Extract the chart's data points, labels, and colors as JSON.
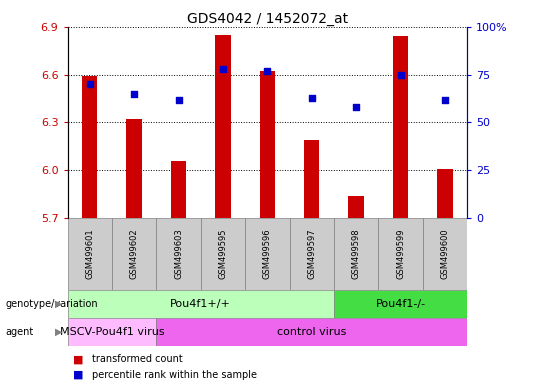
{
  "title": "GDS4042 / 1452072_at",
  "samples": [
    "GSM499601",
    "GSM499602",
    "GSM499603",
    "GSM499595",
    "GSM499596",
    "GSM499597",
    "GSM499598",
    "GSM499599",
    "GSM499600"
  ],
  "transformed_count": [
    6.59,
    6.32,
    6.06,
    6.85,
    6.62,
    6.19,
    5.84,
    6.84,
    6.01
  ],
  "percentile_rank": [
    70,
    65,
    62,
    78,
    77,
    63,
    58,
    75,
    62
  ],
  "ylim_left": [
    5.7,
    6.9
  ],
  "ylim_right": [
    0,
    100
  ],
  "yticks_left": [
    5.7,
    6.0,
    6.3,
    6.6,
    6.9
  ],
  "yticks_right": [
    0,
    25,
    50,
    75,
    100
  ],
  "ytick_right_labels": [
    "0",
    "25",
    "50",
    "75",
    "100%"
  ],
  "bar_color": "#cc0000",
  "dot_color": "#0000cc",
  "bar_bottom": 5.7,
  "bar_width": 0.35,
  "genotype_groups": [
    {
      "label": "Pou4f1+/+",
      "start": 0,
      "end": 6,
      "color": "#bbffbb"
    },
    {
      "label": "Pou4f1-/-",
      "start": 6,
      "end": 9,
      "color": "#44dd44"
    }
  ],
  "agent_groups": [
    {
      "label": "MSCV-Pou4f1 virus",
      "start": 0,
      "end": 2,
      "color": "#ffbbff"
    },
    {
      "label": "control virus",
      "start": 2,
      "end": 9,
      "color": "#ee66ee"
    }
  ],
  "legend_items": [
    {
      "label": "transformed count",
      "color": "#cc0000"
    },
    {
      "label": "percentile rank within the sample",
      "color": "#0000cc"
    }
  ],
  "left_tick_color": "#cc0000",
  "right_tick_color": "#0000cc",
  "row_label_genotype": "genotype/variation",
  "row_label_agent": "agent",
  "sample_box_color": "#cccccc",
  "title_fontsize": 10,
  "tick_fontsize": 8,
  "label_fontsize": 8,
  "sample_fontsize": 6
}
